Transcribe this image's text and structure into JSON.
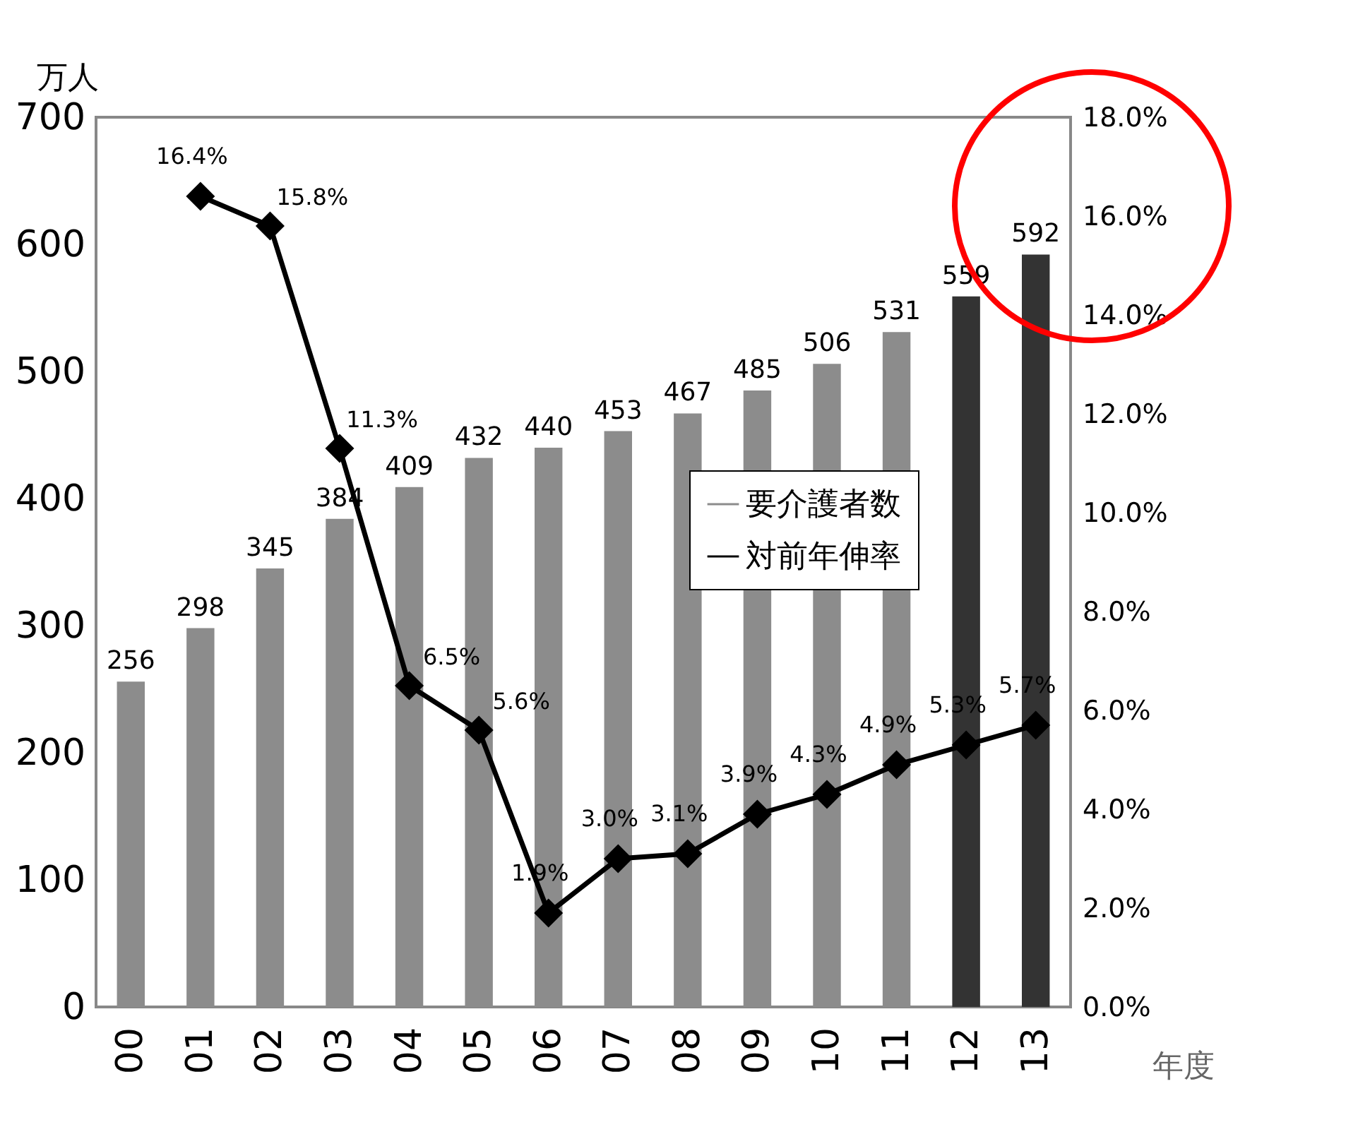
{
  "chart_data": {
    "type": "bar",
    "ylabel": "万人",
    "xlabel": "年度",
    "categories": [
      "00",
      "01",
      "02",
      "03",
      "04",
      "05",
      "06",
      "07",
      "08",
      "09",
      "10",
      "11",
      "12",
      "13"
    ],
    "series": [
      {
        "name": "要介護者数",
        "color": "#8c8c8c",
        "colors": [
          "#8c8c8c",
          "#8c8c8c",
          "#8c8c8c",
          "#8c8c8c",
          "#8c8c8c",
          "#8c8c8c",
          "#8c8c8c",
          "#8c8c8c",
          "#8c8c8c",
          "#8c8c8c",
          "#8c8c8c",
          "#8c8c8c",
          "#333333",
          "#333333"
        ],
        "values": [
          256,
          298,
          345,
          384,
          409,
          432,
          440,
          453,
          467,
          485,
          506,
          531,
          559,
          592
        ],
        "value_labels": [
          "256",
          "298",
          "345",
          "384",
          "409",
          "432",
          "440",
          "453",
          "467",
          "485",
          "506",
          "531",
          "559",
          "592"
        ]
      },
      {
        "name": "対前年伸率",
        "type": "line",
        "axis": "y2",
        "color": "#000000",
        "values": [
          null,
          16.4,
          15.8,
          11.3,
          6.5,
          5.6,
          1.9,
          3.0,
          3.1,
          3.9,
          4.3,
          4.9,
          5.3,
          5.7
        ],
        "value_labels": [
          null,
          "16.4%",
          "15.8%",
          "11.3%",
          "6.5%",
          "5.6%",
          "1.9%",
          "3.0%",
          "3.1%",
          "3.9%",
          "4.3%",
          "4.9%",
          "5.3%",
          "5.7%"
        ]
      }
    ],
    "ylim": [
      0,
      700
    ],
    "yticks": [
      0,
      100,
      200,
      300,
      400,
      500,
      600,
      700
    ],
    "y2lim": [
      0,
      18
    ],
    "y2ticks": [
      {
        "value": 0,
        "label": "0.0%"
      },
      {
        "value": 2,
        "label": "2.0%"
      },
      {
        "value": 4,
        "label": "4.0%"
      },
      {
        "value": 6,
        "label": "6.0%"
      },
      {
        "value": 8,
        "label": "8.0%"
      },
      {
        "value": 10,
        "label": "10.0%"
      },
      {
        "value": 12,
        "label": "12.0%"
      },
      {
        "value": 14,
        "label": "14.0%"
      },
      {
        "value": 16,
        "label": "16.0%"
      },
      {
        "value": 18,
        "label": "18.0%"
      }
    ],
    "marker": "diamond",
    "line_style": "solid",
    "grid": false,
    "legend": "right"
  }
}
